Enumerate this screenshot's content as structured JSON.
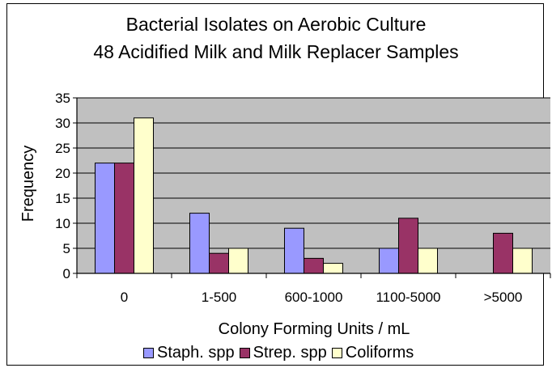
{
  "chart_data": {
    "type": "bar",
    "title": "Bacterial Isolates on Aerobic Culture",
    "subtitle": "48 Acidified Milk and Milk Replacer Samples",
    "xlabel": "Colony Forming Units / mL",
    "ylabel": "Frequency",
    "categories": [
      "0",
      "1-500",
      "600-1000",
      "1100-5000",
      ">5000"
    ],
    "ylim": [
      0,
      35
    ],
    "yticks": [
      0,
      5,
      10,
      15,
      20,
      25,
      30,
      35
    ],
    "grid": true,
    "legend_position": "bottom",
    "plot_background": "#c0c0c0",
    "series": [
      {
        "name": "Staph. spp",
        "color": "#9999ff",
        "values": [
          22,
          12,
          9,
          5,
          0
        ]
      },
      {
        "name": "Strep. spp",
        "color": "#993366",
        "values": [
          22,
          4,
          3,
          11,
          8
        ]
      },
      {
        "name": "Coliforms",
        "color": "#ffffcc",
        "values": [
          31,
          5,
          2,
          5,
          5
        ]
      }
    ]
  }
}
